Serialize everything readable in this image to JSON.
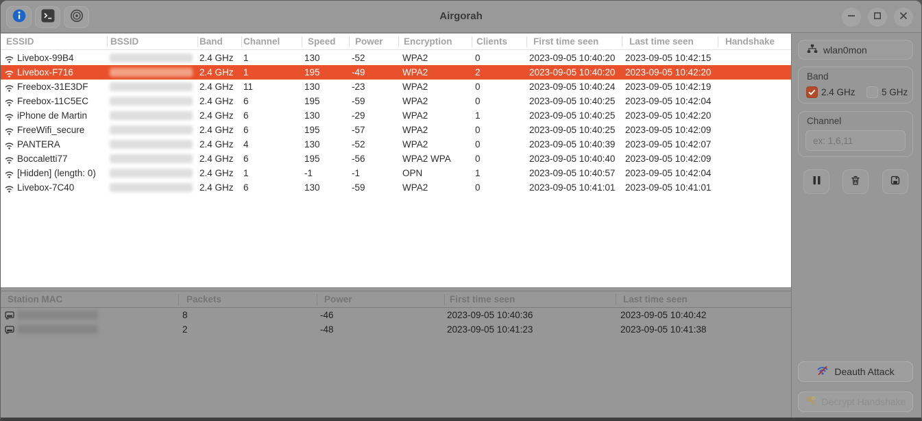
{
  "titlebar": {
    "title": "Airgorah",
    "left_buttons": [
      {
        "icon": "info-icon"
      },
      {
        "icon": "terminal-icon"
      },
      {
        "icon": "scan-icon"
      }
    ],
    "window_controls": [
      "minimize-icon",
      "maximize-icon",
      "close-icon"
    ]
  },
  "ap_table": {
    "columns": [
      "ESSID",
      "BSSID",
      "Band",
      "Channel",
      "Speed",
      "Power",
      "Encryption",
      "Clients",
      "First time seen",
      "Last time seen",
      "Handshake"
    ],
    "rows": [
      {
        "essid": "Livebox-99B4",
        "bssid_redacted": true,
        "band": "2.4 GHz",
        "channel": "1",
        "speed": "130",
        "power": "-52",
        "encryption": "WPA2",
        "clients": "0",
        "first_seen": "2023-09-05 10:40:20",
        "last_seen": "2023-09-05 10:42:15",
        "handshake": "",
        "selected": false
      },
      {
        "essid": "Livebox-F716",
        "bssid_redacted": true,
        "band": "2.4 GHz",
        "channel": "1",
        "speed": "195",
        "power": "-49",
        "encryption": "WPA2",
        "clients": "2",
        "first_seen": "2023-09-05 10:40:20",
        "last_seen": "2023-09-05 10:42:20",
        "handshake": "",
        "selected": true
      },
      {
        "essid": "Freebox-31E3DF",
        "bssid_redacted": true,
        "band": "2.4 GHz",
        "channel": "11",
        "speed": "130",
        "power": "-23",
        "encryption": "WPA2",
        "clients": "0",
        "first_seen": "2023-09-05 10:40:24",
        "last_seen": "2023-09-05 10:42:19",
        "handshake": "",
        "selected": false
      },
      {
        "essid": "Freebox-11C5EC",
        "bssid_redacted": true,
        "band": "2.4 GHz",
        "channel": "6",
        "speed": "195",
        "power": "-59",
        "encryption": "WPA2",
        "clients": "0",
        "first_seen": "2023-09-05 10:40:25",
        "last_seen": "2023-09-05 10:42:04",
        "handshake": "",
        "selected": false
      },
      {
        "essid": "iPhone de Martin",
        "bssid_redacted": true,
        "band": "2.4 GHz",
        "channel": "6",
        "speed": "130",
        "power": "-29",
        "encryption": "WPA2",
        "clients": "1",
        "first_seen": "2023-09-05 10:40:25",
        "last_seen": "2023-09-05 10:42:20",
        "handshake": "",
        "selected": false
      },
      {
        "essid": "FreeWifi_secure",
        "bssid_redacted": true,
        "band": "2.4 GHz",
        "channel": "6",
        "speed": "195",
        "power": "-57",
        "encryption": "WPA2",
        "clients": "0",
        "first_seen": "2023-09-05 10:40:25",
        "last_seen": "2023-09-05 10:42:09",
        "handshake": "",
        "selected": false
      },
      {
        "essid": "PANTERA",
        "bssid_redacted": true,
        "band": "2.4 GHz",
        "channel": "4",
        "speed": "130",
        "power": "-52",
        "encryption": "WPA2",
        "clients": "0",
        "first_seen": "2023-09-05 10:40:39",
        "last_seen": "2023-09-05 10:42:07",
        "handshake": "",
        "selected": false
      },
      {
        "essid": "Boccaletti77",
        "bssid_redacted": true,
        "band": "2.4 GHz",
        "channel": "6",
        "speed": "195",
        "power": "-56",
        "encryption": "WPA2 WPA",
        "clients": "0",
        "first_seen": "2023-09-05 10:40:40",
        "last_seen": "2023-09-05 10:42:09",
        "handshake": "",
        "selected": false
      },
      {
        "essid": "[Hidden] (length: 0)",
        "bssid_redacted": true,
        "band": "2.4 GHz",
        "channel": "1",
        "speed": "-1",
        "power": "-1",
        "encryption": "OPN",
        "clients": "1",
        "first_seen": "2023-09-05 10:40:57",
        "last_seen": "2023-09-05 10:42:04",
        "handshake": "",
        "selected": false
      },
      {
        "essid": "Livebox-7C40",
        "bssid_redacted": true,
        "band": "2.4 GHz",
        "channel": "6",
        "speed": "130",
        "power": "-59",
        "encryption": "WPA2",
        "clients": "0",
        "first_seen": "2023-09-05 10:41:01",
        "last_seen": "2023-09-05 10:41:01",
        "handshake": "",
        "selected": false
      }
    ]
  },
  "station_table": {
    "columns": [
      "Station MAC",
      "Packets",
      "Power",
      "First time seen",
      "Last time seen"
    ],
    "rows": [
      {
        "mac_redacted": true,
        "packets": "8",
        "power": "-46",
        "first_seen": "2023-09-05 10:40:36",
        "last_seen": "2023-09-05 10:40:42"
      },
      {
        "mac_redacted": true,
        "packets": "2",
        "power": "-48",
        "first_seen": "2023-09-05 10:41:23",
        "last_seen": "2023-09-05 10:41:38"
      }
    ]
  },
  "sidebar": {
    "interface": {
      "label": "wlan0mon",
      "icon": "network-icon"
    },
    "band": {
      "label": "Band",
      "options": [
        {
          "label": "2.4 GHz",
          "checked": true
        },
        {
          "label": "5 GHz",
          "checked": false
        }
      ]
    },
    "channel": {
      "label": "Channel",
      "placeholder": "ex: 1,6,11",
      "value": ""
    },
    "actions": [
      {
        "icon": "pause-icon"
      },
      {
        "icon": "trash-icon"
      },
      {
        "icon": "save-icon"
      }
    ],
    "deauth_button": {
      "label": "Deauth Attack",
      "icon": "wifi-slash-icon",
      "enabled": true
    },
    "decrypt_button": {
      "label": "Decrypt Handshake",
      "icon": "keys-icon",
      "enabled": false
    }
  },
  "colors": {
    "accent_orange": "#e8512b",
    "checkbox_orange": "#b24b2b",
    "info_blue": "#1c65c9",
    "deauth_slash_red": "#c32222",
    "keys_gold": "#c79a22",
    "window_gray": "#979797",
    "table_white": "#ffffff"
  }
}
